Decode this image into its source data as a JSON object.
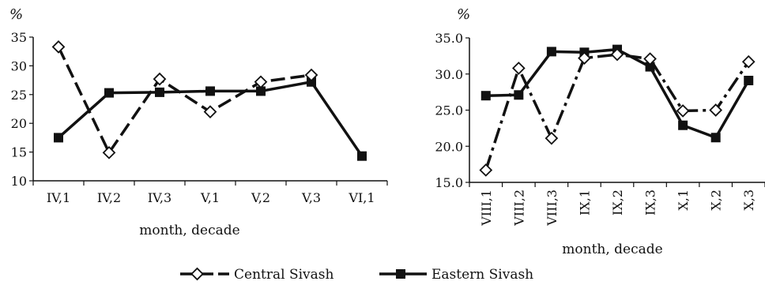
{
  "chart_data": [
    {
      "type": "line",
      "ylabel": "%",
      "xlabel": "month, decade",
      "categories": [
        "IV,1",
        "IV,2",
        "IV,3",
        "V,1",
        "V,2",
        "V,3",
        "VI,1"
      ],
      "ylim": [
        10,
        35
      ],
      "yticks": [
        "10",
        "15",
        "20",
        "25",
        "30",
        "35"
      ],
      "grid": false,
      "series": [
        {
          "name": "Central Sivash",
          "values": [
            33.3,
            14.9,
            27.7,
            22.0,
            27.2,
            28.4,
            null
          ],
          "color": "#111111",
          "marker": "diamond",
          "dash": "dashed"
        },
        {
          "name": "Eastern Sivash",
          "values": [
            17.5,
            25.3,
            25.4,
            25.6,
            25.6,
            27.2,
            14.3
          ],
          "color": "#111111",
          "marker": "square",
          "dash": "solid"
        }
      ]
    },
    {
      "type": "line",
      "ylabel": "%",
      "xlabel": "month, decade",
      "categories": [
        "VIII,1",
        "VIII,2",
        "VIII,3",
        "IX,1",
        "IX,2",
        "IX,3",
        "X,1",
        "X,2",
        "X,3"
      ],
      "ylim": [
        15,
        35
      ],
      "yticks": [
        "15.0",
        "20.0",
        "25.0",
        "30.0",
        "35.0"
      ],
      "grid": false,
      "series": [
        {
          "name": "Central Sivash",
          "values": [
            16.7,
            30.8,
            21.1,
            32.2,
            32.7,
            32.1,
            24.9,
            25.0,
            31.7
          ],
          "color": "#111111",
          "marker": "diamond",
          "dash": "dashdot"
        },
        {
          "name": "Eastern Sivash",
          "values": [
            27.0,
            27.1,
            33.1,
            33.0,
            33.4,
            31.0,
            22.9,
            21.2,
            29.1
          ],
          "color": "#111111",
          "marker": "square",
          "dash": "solid"
        }
      ]
    }
  ],
  "legend": {
    "position": "bottom-center",
    "items": [
      {
        "label": "Central Sivash",
        "marker": "diamond"
      },
      {
        "label": "Eastern Sivash",
        "marker": "square"
      }
    ]
  }
}
